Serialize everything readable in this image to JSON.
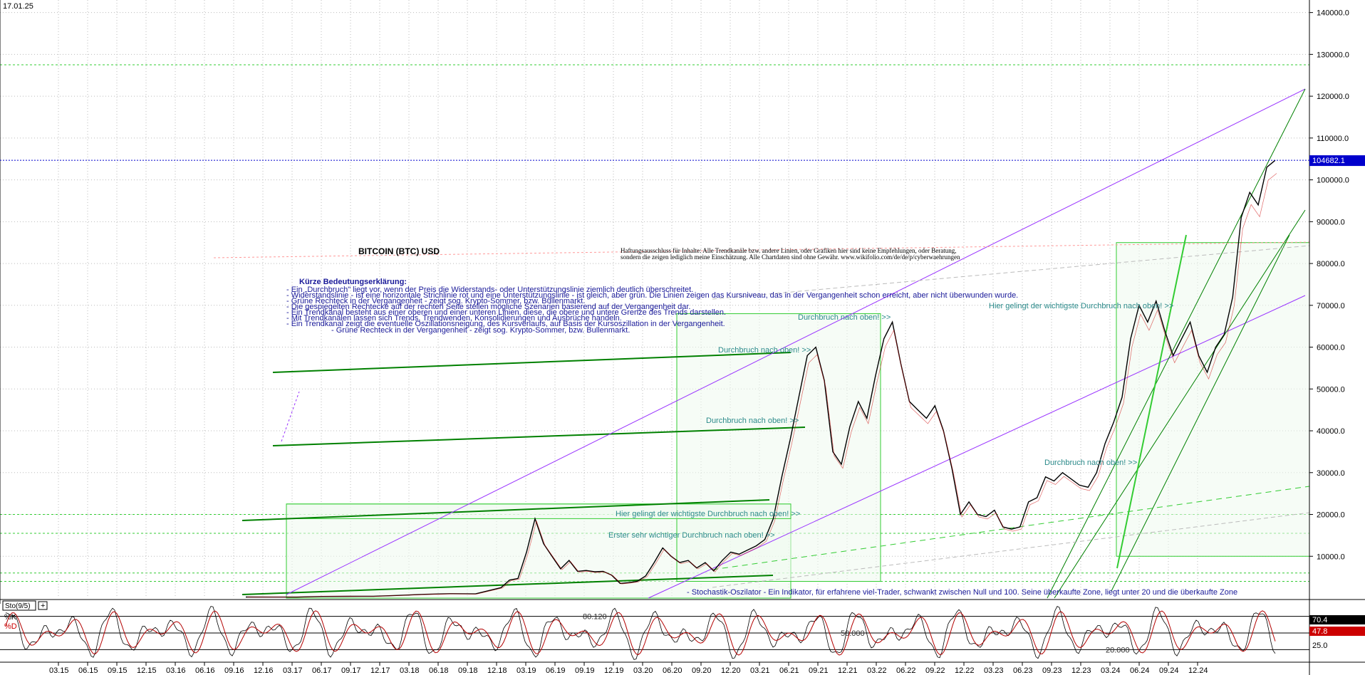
{
  "header": {
    "date": "17.01.25"
  },
  "chart_data": {
    "type": "line",
    "title": "BITCOIN (BTC) USD",
    "x_ticks": [
      "03.15",
      "06.15",
      "09.15",
      "12.15",
      "03.16",
      "06.16",
      "09.16",
      "12.16",
      "03.17",
      "06.17",
      "09.17",
      "12.17",
      "03.18",
      "06.18",
      "09.18",
      "12.18",
      "03.19",
      "06.19",
      "09.19",
      "12.19",
      "03.20",
      "06.20",
      "09.20",
      "12.20",
      "03.21",
      "06.21",
      "09.21",
      "12.21",
      "03.22",
      "06.22",
      "09.22",
      "12.22",
      "03.23",
      "06.23",
      "09.23",
      "12.23",
      "03.24",
      "06.24",
      "09.24",
      "12.24"
    ],
    "y_ticks": [
      140000,
      130000,
      120000,
      110000,
      100000,
      90000,
      80000,
      70000,
      60000,
      50000,
      40000,
      30000,
      20000,
      10000
    ],
    "y_tick_labels": [
      "140000.0",
      "130000.0",
      "120000.0",
      "110000.0",
      "100000.0",
      "90000.0",
      "80000.0",
      "70000.0",
      "60000.0",
      "50000.0",
      "40000.0",
      "30000.0",
      "20000.0",
      "10000.0"
    ],
    "ylim": [
      0,
      143000
    ],
    "last_price": 104682.1,
    "last_price_label": "104682.1",
    "series": [
      {
        "values": [
          [
            0,
            250
          ],
          [
            3,
            240
          ],
          [
            6,
            230
          ],
          [
            9,
            400
          ],
          [
            12,
            420
          ],
          [
            15,
            440
          ],
          [
            18,
            650
          ],
          [
            21,
            900
          ],
          [
            24,
            1050
          ],
          [
            27,
            1000
          ],
          [
            30,
            2500
          ],
          [
            31,
            4300
          ],
          [
            32,
            4700
          ],
          [
            33,
            11000
          ],
          [
            34,
            19000
          ],
          [
            35,
            13000
          ],
          [
            36,
            10000
          ],
          [
            37,
            7000
          ],
          [
            38,
            9000
          ],
          [
            39,
            6400
          ],
          [
            40,
            6600
          ],
          [
            41,
            6300
          ],
          [
            42,
            6400
          ],
          [
            43,
            5500
          ],
          [
            44,
            3500
          ],
          [
            45,
            3700
          ],
          [
            46,
            4000
          ],
          [
            47,
            5300
          ],
          [
            48,
            8500
          ],
          [
            49,
            12000
          ],
          [
            50,
            10000
          ],
          [
            51,
            8500
          ],
          [
            52,
            9000
          ],
          [
            53,
            7200
          ],
          [
            54,
            8500
          ],
          [
            55,
            6500
          ],
          [
            56,
            9000
          ],
          [
            57,
            11000
          ],
          [
            58,
            10500
          ],
          [
            59,
            11500
          ],
          [
            60,
            12500
          ],
          [
            61,
            14000
          ],
          [
            62,
            19000
          ],
          [
            63,
            29000
          ],
          [
            64,
            38000
          ],
          [
            65,
            48000
          ],
          [
            66,
            58000
          ],
          [
            67,
            60000
          ],
          [
            68,
            52000
          ],
          [
            69,
            35000
          ],
          [
            70,
            32000
          ],
          [
            71,
            41000
          ],
          [
            72,
            47000
          ],
          [
            73,
            43000
          ],
          [
            74,
            53000
          ],
          [
            75,
            62000
          ],
          [
            76,
            66000
          ],
          [
            77,
            56000
          ],
          [
            78,
            47000
          ],
          [
            79,
            45000
          ],
          [
            80,
            43000
          ],
          [
            81,
            46000
          ],
          [
            82,
            40000
          ],
          [
            83,
            31000
          ],
          [
            84,
            20000
          ],
          [
            85,
            23000
          ],
          [
            86,
            20000
          ],
          [
            87,
            19500
          ],
          [
            88,
            21000
          ],
          [
            89,
            17000
          ],
          [
            90,
            16500
          ],
          [
            91,
            17000
          ],
          [
            92,
            23000
          ],
          [
            93,
            24000
          ],
          [
            94,
            29000
          ],
          [
            95,
            28000
          ],
          [
            96,
            30000
          ],
          [
            97,
            28500
          ],
          [
            98,
            27000
          ],
          [
            99,
            26500
          ],
          [
            100,
            30000
          ],
          [
            101,
            37000
          ],
          [
            102,
            42000
          ],
          [
            103,
            48000
          ],
          [
            104,
            62000
          ],
          [
            105,
            70000
          ],
          [
            106,
            66000
          ],
          [
            107,
            71000
          ],
          [
            108,
            64000
          ],
          [
            109,
            58000
          ],
          [
            110,
            62000
          ],
          [
            111,
            66000
          ],
          [
            112,
            58000
          ],
          [
            113,
            54000
          ],
          [
            114,
            60000
          ],
          [
            115,
            63000
          ],
          [
            116,
            72000
          ],
          [
            117,
            91000
          ],
          [
            118,
            97000
          ],
          [
            119,
            94000
          ],
          [
            120,
            103000
          ],
          [
            121,
            104682
          ]
        ]
      }
    ],
    "annotations": {
      "explanation_title": "Kürze Bedeutungserklärung:",
      "explanation_lines": [
        "- Ein „Durchbruch\" liegt vor, wenn der Preis die Widerstands- oder Unterstützungslinie ziemlich deutlich überschreitet.",
        "- Widerstandslinie - ist eine horizontale Strichlinie rot und eine Unterstützungslinie - ist gleich, aber grün. Die Linien zeigen das Kursniveau, das in der Vergangenheit schon erreicht, aber nicht überwunden wurde.",
        "- Grüne Rechteck in der Vergangenheit - zeigt sog. Krypto-Sommer, bzw. Bullenmarkt.",
        "- Die gespiegelten Rechtecke auf der rechten Seite stellen mögliche Szenarien basierend auf der Vergangenheit dar.",
        "- Ein Trendkanal besteht aus einer oberen und einer unteren Linien, diese, die obere und untere Grenze des Trends darstellen.",
        "- Mit Trendkanälen lassen sich Trends, Trendwenden, Konsolidierungen und Ausbrüche handeln.",
        "- Ein Trendkanal  zeigt die eventuelle Oszillationsneigung, des Kursverlaufs, auf Basis der Kursoszillation in der Vergangenheit.",
        "- Grüne Rechteck in der Vergangenheit - zeigt sog. Krypto-Sommer, bzw. Bullenmarkt."
      ],
      "disclaimer_line1": "Haftungsausschluss für Inhalte: Alle Trendkanäle bzw. andere Linien, oder Grafiken hier sind keine Empfehlungen, oder Beratung,",
      "disclaimer_line2": "sondern die zeigen lediglich meine  Einschätzung. Alle Chartdaten sind ohne Gewähr.  www.wikifolio.com/de/de/p/cyberwaehrungen",
      "breakout_up": "Durchbruch nach oben! >>",
      "most_important_breakout": "Hier gelingt der wichtigste Durchbruch nach oben! >>",
      "first_important_breakout": "Erster sehr wichtiger Durchbruch nach oben! >>",
      "stochastic_note": "- Stochastik-Oszilator - Ein Indikator, für erfahrene viel-Trader, schwankt zwischen Null und 100. Seine überkaufte Zone, liegt unter 20 und die überkaufte Zone"
    }
  },
  "oscillator": {
    "name": "Sto(9/5)",
    "k_label": "%K",
    "d_label": "%D",
    "k_value": "70.4",
    "d_value": "47.8",
    "level_80_label": "80.120",
    "level_50_label": "50.000",
    "level_20_label": "20.000",
    "level_25_label": "25.0"
  },
  "colors": {
    "price": "#000000",
    "green_channel": "#008000",
    "light_green": "#33cc33",
    "violet": "#9933ff",
    "red_dash": "#ff4444",
    "last_price_bg": "#0000cc",
    "annotation_text": "#1a1a99",
    "breakout_text": "#2b8a8a",
    "osc_line": "#b30000"
  }
}
